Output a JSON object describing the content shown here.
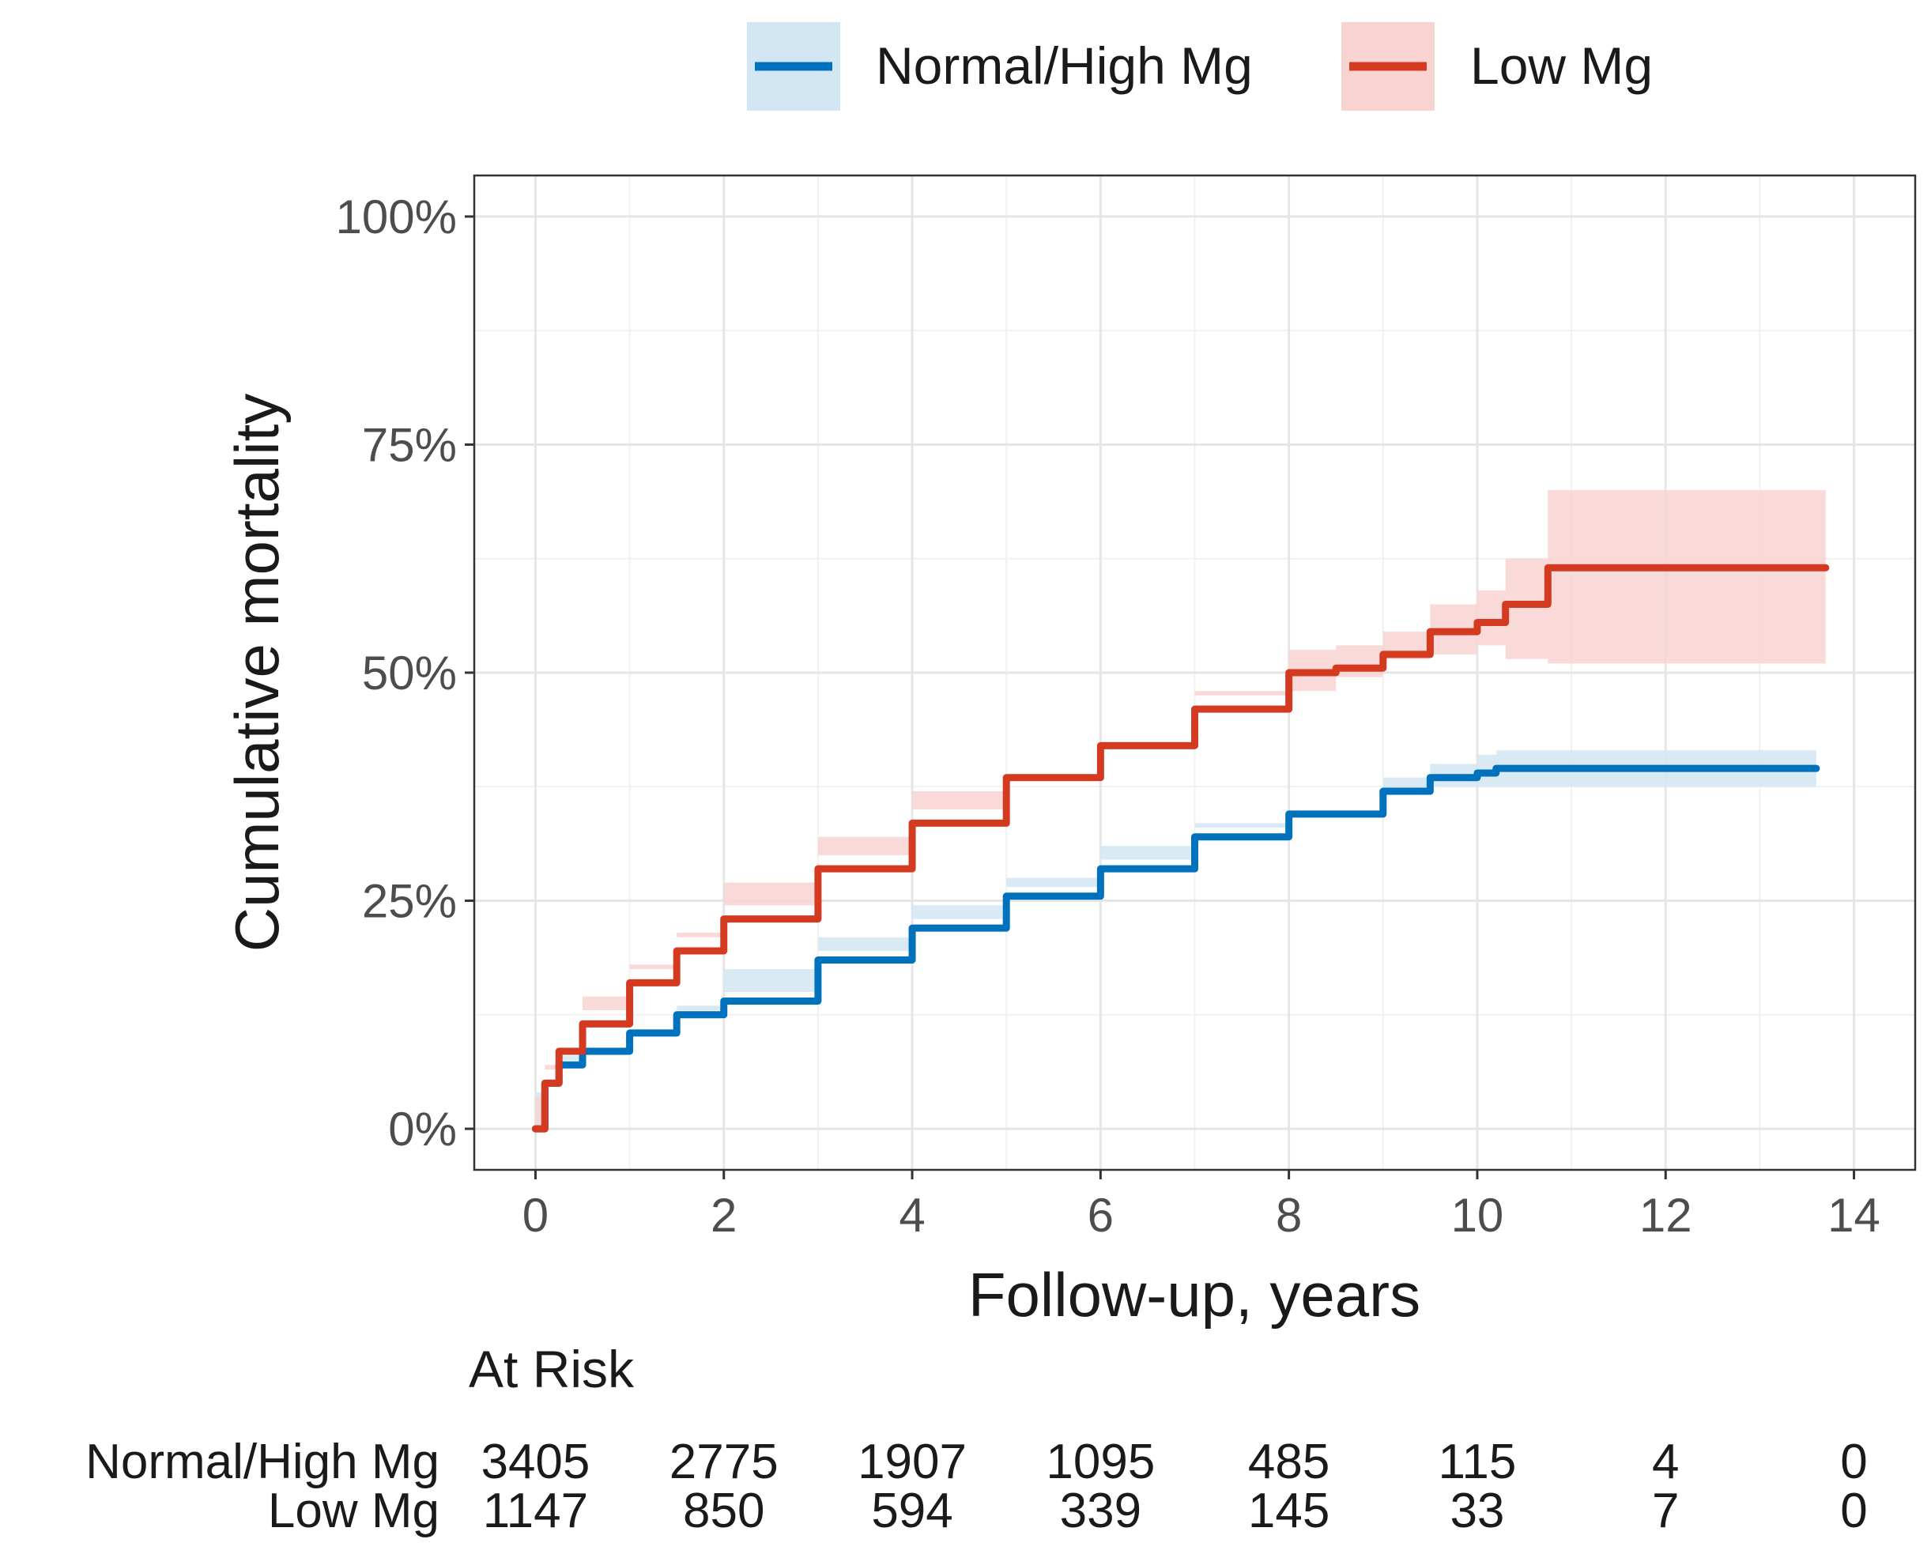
{
  "chart_data": {
    "type": "line",
    "subtype": "cumulative-incidence step curve with confidence bands",
    "xlabel": "Follow-up, years",
    "ylabel": "Cumulative mortality",
    "xlim": [
      -0.65,
      14.65
    ],
    "ylim": [
      -0.045,
      1.045
    ],
    "x_ticks": [
      0,
      2,
      4,
      6,
      8,
      10,
      12,
      14
    ],
    "x_tick_labels": [
      "0",
      "2",
      "4",
      "6",
      "8",
      "10",
      "12",
      "14"
    ],
    "y_ticks": [
      0,
      0.25,
      0.5,
      0.75,
      1.0
    ],
    "y_tick_labels": [
      "0%",
      "25%",
      "50%",
      "75%",
      "100%"
    ],
    "grid": true,
    "legend_position": "top",
    "series": [
      {
        "name": "Normal/High Mg",
        "color": "#0072bd",
        "band_color": "#d2e6f3",
        "x": [
          0,
          0.1,
          0.25,
          0.5,
          1,
          1.5,
          2,
          3,
          4,
          5,
          6,
          7,
          8,
          9,
          9.5,
          10,
          10.2,
          13.6
        ],
        "y": [
          0,
          0.05,
          0.07,
          0.085,
          0.105,
          0.125,
          0.14,
          0.185,
          0.22,
          0.255,
          0.285,
          0.32,
          0.345,
          0.37,
          0.385,
          0.39,
          0.395,
          0.395
        ],
        "lower": [
          0,
          0.04,
          0.06,
          0.075,
          0.095,
          0.115,
          0.13,
          0.175,
          0.21,
          0.245,
          0.275,
          0.31,
          0.335,
          0.355,
          0.37,
          0.375,
          0.375,
          0.375
        ],
        "upper": [
          0,
          0.06,
          0.08,
          0.095,
          0.115,
          0.135,
          0.15,
          0.195,
          0.23,
          0.265,
          0.295,
          0.33,
          0.355,
          0.385,
          0.4,
          0.41,
          0.415,
          0.415
        ]
      },
      {
        "name": "Low Mg",
        "color": "#d33a20",
        "band_color": "#f8d3d1",
        "x": [
          0,
          0.1,
          0.25,
          0.5,
          1,
          1.5,
          2,
          3,
          4,
          5,
          6,
          7,
          8,
          8.5,
          9,
          9.5,
          10,
          10.3,
          10.75,
          13.7
        ],
        "y": [
          0,
          0.05,
          0.085,
          0.115,
          0.16,
          0.195,
          0.23,
          0.285,
          0.335,
          0.385,
          0.42,
          0.46,
          0.5,
          0.505,
          0.52,
          0.545,
          0.555,
          0.575,
          0.615,
          0.615
        ],
        "lower": [
          0,
          0.035,
          0.07,
          0.1,
          0.145,
          0.18,
          0.215,
          0.27,
          0.32,
          0.37,
          0.4,
          0.44,
          0.475,
          0.48,
          0.495,
          0.515,
          0.52,
          0.53,
          0.515,
          0.51
        ],
        "upper": [
          0,
          0.065,
          0.1,
          0.13,
          0.175,
          0.21,
          0.245,
          0.3,
          0.35,
          0.4,
          0.44,
          0.48,
          0.525,
          0.53,
          0.545,
          0.575,
          0.59,
          0.625,
          0.7,
          0.7
        ]
      }
    ]
  },
  "risk_table": {
    "title": "At Risk",
    "times": [
      0,
      2,
      4,
      6,
      8,
      10,
      12,
      14
    ],
    "rows": [
      {
        "label": "Normal/High Mg",
        "values": [
          "3405",
          "2775",
          "1907",
          "1095",
          "485",
          "115",
          "4",
          "0"
        ]
      },
      {
        "label": "Low Mg",
        "values": [
          "1147",
          "850",
          "594",
          "339",
          "145",
          "33",
          "7",
          "0"
        ]
      }
    ]
  }
}
